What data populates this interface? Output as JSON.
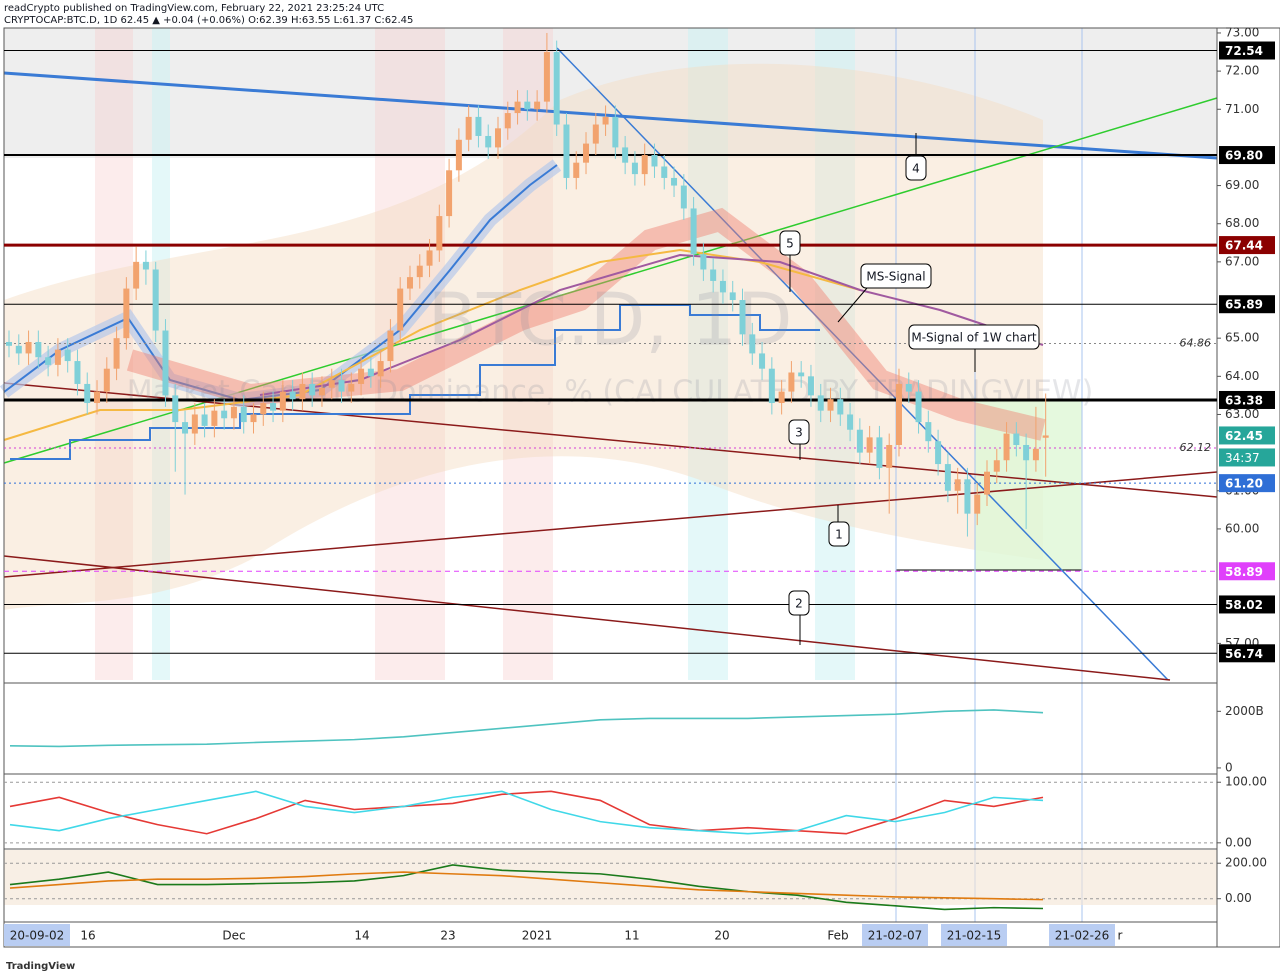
{
  "header": {
    "published": "readCrypto published on TradingView.com, February 22, 2021 23:25:24 UTC",
    "symbol_line": "CRYPTOCAP:BTC.D, 1D  62.45 ▲ +0.04 (+0.06%)  O:62.39 H:63.55 L:61.37 C:62.45"
  },
  "chart_data": {
    "type": "candlestick",
    "watermark": "BTC.D, 1D",
    "watermark_subtitle": "Market Cap BTC Dominance, % (CALCULATED BY TRADINGVIEW)",
    "open": [
      64.9,
      64.8,
      64.6,
      64.9,
      64.5,
      64.3,
      64.7,
      64.4,
      63.8,
      63.3,
      63.6,
      64.2,
      65.0,
      66.3,
      67.0,
      66.8,
      65.2,
      63.5,
      62.8,
      62.5,
      63.0,
      62.7,
      63.1,
      62.9,
      63.2,
      62.8,
      63.0,
      63.3,
      63.1,
      63.6,
      63.4,
      63.8,
      63.5,
      63.7,
      63.9,
      63.6,
      63.8,
      64.2,
      64.0,
      64.4,
      65.2,
      66.3,
      66.6,
      66.9,
      67.3,
      68.2,
      69.4,
      70.2,
      70.8,
      70.3,
      70.0,
      70.5,
      70.9,
      71.2,
      71.0,
      71.2,
      72.5,
      70.6,
      69.2,
      69.6,
      70.1,
      70.6,
      70.8,
      70.0,
      69.6,
      69.3,
      69.8,
      69.5,
      69.2,
      69.0,
      68.4,
      67.2,
      66.8,
      66.5,
      66.2,
      66.0,
      65.1,
      64.6,
      64.2,
      63.3,
      63.6,
      64.1,
      64.0,
      63.5,
      63.1,
      63.4,
      63.0,
      62.6,
      62.0,
      62.4,
      61.6,
      62.2,
      63.8,
      63.6,
      62.8,
      62.3,
      61.7,
      61.0,
      61.3,
      60.4,
      60.9,
      61.5,
      61.8,
      62.5,
      62.2,
      61.8,
      62.39
    ],
    "high": [
      65.2,
      65.1,
      65.2,
      65.2,
      64.8,
      65.0,
      65.0,
      64.7,
      64.1,
      63.9,
      64.5,
      65.3,
      66.6,
      67.4,
      67.3,
      67.0,
      65.5,
      63.8,
      63.1,
      63.3,
      63.3,
      63.4,
      63.4,
      63.5,
      63.5,
      63.3,
      63.6,
      63.6,
      63.9,
      63.9,
      64.1,
      64.1,
      64.0,
      64.2,
      64.2,
      64.1,
      64.5,
      64.5,
      64.7,
      65.5,
      66.6,
      66.9,
      67.2,
      67.6,
      68.5,
      69.7,
      70.5,
      71.1,
      71.1,
      70.6,
      70.8,
      71.2,
      71.5,
      71.5,
      71.5,
      73.0,
      72.8,
      70.9,
      69.9,
      70.4,
      70.9,
      71.1,
      71.1,
      70.3,
      69.9,
      70.1,
      70.1,
      69.8,
      69.5,
      69.3,
      68.7,
      67.5,
      67.1,
      66.8,
      66.5,
      66.3,
      65.4,
      64.9,
      64.5,
      63.9,
      64.4,
      64.4,
      64.3,
      63.8,
      63.7,
      63.7,
      63.3,
      62.9,
      62.7,
      62.7,
      62.5,
      64.2,
      64.1,
      63.9,
      63.1,
      62.6,
      62.0,
      61.6,
      61.6,
      61.2,
      61.8,
      62.1,
      62.8,
      62.8,
      62.5,
      63.2,
      63.55
    ],
    "low": [
      64.5,
      64.3,
      64.3,
      64.2,
      64.0,
      64.0,
      64.1,
      63.5,
      63.0,
      63.0,
      63.3,
      63.9,
      64.7,
      66.0,
      66.4,
      64.9,
      63.2,
      61.5,
      60.9,
      62.2,
      62.4,
      62.4,
      62.6,
      62.6,
      62.5,
      62.5,
      62.7,
      62.8,
      62.8,
      63.1,
      63.1,
      63.2,
      63.2,
      63.4,
      63.3,
      63.3,
      63.5,
      63.7,
      63.7,
      64.1,
      64.9,
      66.0,
      66.3,
      66.6,
      67.0,
      67.9,
      69.1,
      69.9,
      70.0,
      69.7,
      69.7,
      70.2,
      70.6,
      70.7,
      70.7,
      70.9,
      70.3,
      68.9,
      68.9,
      69.3,
      69.8,
      70.3,
      69.7,
      69.3,
      69.0,
      69.0,
      69.2,
      68.9,
      68.7,
      68.1,
      66.9,
      66.5,
      66.2,
      65.9,
      65.7,
      64.8,
      64.3,
      63.9,
      63.0,
      63.0,
      63.3,
      63.7,
      63.2,
      62.8,
      62.8,
      62.7,
      62.3,
      61.7,
      61.7,
      61.3,
      60.4,
      61.9,
      63.3,
      62.5,
      62.0,
      61.4,
      60.7,
      60.4,
      59.8,
      60.1,
      60.6,
      61.2,
      61.5,
      61.9,
      60.0,
      61.5,
      61.37
    ],
    "close": [
      64.8,
      64.6,
      64.9,
      64.5,
      64.3,
      64.7,
      64.4,
      63.8,
      63.3,
      63.6,
      64.2,
      65.0,
      66.3,
      67.0,
      66.8,
      65.2,
      63.5,
      62.8,
      62.5,
      63.0,
      62.7,
      63.1,
      62.9,
      63.2,
      62.8,
      63.0,
      63.3,
      63.1,
      63.6,
      63.4,
      63.8,
      63.5,
      63.7,
      63.9,
      63.6,
      63.8,
      64.2,
      64.0,
      64.4,
      65.2,
      66.3,
      66.6,
      66.9,
      67.3,
      68.2,
      69.4,
      70.2,
      70.8,
      70.3,
      70.0,
      70.5,
      70.9,
      71.2,
      71.0,
      71.2,
      72.5,
      70.6,
      69.2,
      69.6,
      70.1,
      70.6,
      70.8,
      70.0,
      69.6,
      69.3,
      69.8,
      69.5,
      69.2,
      69.0,
      68.4,
      67.2,
      66.8,
      66.5,
      66.2,
      66.0,
      65.1,
      64.6,
      64.2,
      63.3,
      63.6,
      64.1,
      64.0,
      63.5,
      63.1,
      63.4,
      63.0,
      62.6,
      62.0,
      62.4,
      61.6,
      62.2,
      63.8,
      63.6,
      62.8,
      62.3,
      61.7,
      61.0,
      61.3,
      60.4,
      60.9,
      61.5,
      61.8,
      62.5,
      62.2,
      61.8,
      62.1,
      62.45
    ],
    "up_color": "#f2a36e",
    "down_color": "#7fd0d8",
    "ylim": [
      56.04,
      73.13
    ],
    "yticks": [
      {
        "value": 73,
        "label": "73.00"
      },
      {
        "value": 72,
        "label": "72.00"
      },
      {
        "value": 71,
        "label": "71.00"
      },
      {
        "value": 69,
        "label": "69.00"
      },
      {
        "value": 68,
        "label": "68.00"
      },
      {
        "value": 67,
        "label": "67.00"
      },
      {
        "value": 65,
        "label": "65.00"
      },
      {
        "value": 64,
        "label": "64.00"
      },
      {
        "value": 63,
        "label": "63.00"
      },
      {
        "value": 61,
        "label": "61.00"
      },
      {
        "value": 60,
        "label": "60.00"
      },
      {
        "value": 57,
        "label": "57.00"
      }
    ],
    "levels": [
      {
        "value": 72.54,
        "label": "72.54",
        "color": "#000000",
        "style": "solid",
        "width": 1,
        "box": true
      },
      {
        "value": 69.8,
        "label": "69.80",
        "color": "#000000",
        "style": "solid",
        "width": 2,
        "box": true
      },
      {
        "value": 67.44,
        "label": "67.44",
        "color": "#8b0000",
        "style": "solid",
        "width": 3,
        "box": true
      },
      {
        "value": 65.89,
        "label": "65.89",
        "color": "#000000",
        "style": "solid",
        "width": 1,
        "box": true
      },
      {
        "value": 64.86,
        "label": "64.86",
        "color": "#888888",
        "style": "dotted",
        "width": 1,
        "box": false
      },
      {
        "value": 63.38,
        "label": "63.38",
        "color": "#000000",
        "style": "solid",
        "width": 3,
        "box": true
      },
      {
        "value": 62.45,
        "label": "62.45",
        "color": "#26a69a",
        "style": "none",
        "width": 1,
        "box": true
      },
      {
        "value": 62.12,
        "label": "62.12",
        "color": "#d63fd6",
        "style": "dotted",
        "width": 1,
        "box": false
      },
      {
        "value": 61.2,
        "label": "61.20",
        "color": "#2f6fd6",
        "style": "dotted",
        "width": 1,
        "box": true
      },
      {
        "value": 58.89,
        "label": "58.89",
        "color": "#e040fb",
        "style": "dashed",
        "width": 1,
        "box": true
      },
      {
        "value": 58.02,
        "label": "58.02",
        "color": "#000000",
        "style": "solid",
        "width": 1,
        "box": true
      },
      {
        "value": 56.74,
        "label": "56.74",
        "color": "#000000",
        "style": "solid",
        "width": 1,
        "box": true
      }
    ],
    "countdown": "34:37",
    "annotations": [
      "1",
      "2",
      "3",
      "4",
      "5",
      "MS-Signal",
      "M-Signal of 1W chart"
    ],
    "x_labels": [
      "20-09-02",
      "16",
      "Dec",
      "14",
      "23",
      "2021",
      "11",
      "20",
      "Feb",
      "21-02-07",
      "21-02-15",
      "21-02-26",
      "r"
    ]
  },
  "panels": [
    {
      "type": "line",
      "ylim": [
        -214,
        3000
      ],
      "yticks": [
        {
          "value": 2000,
          "label": "2000B"
        },
        0
      ],
      "series": [
        {
          "color": "#4fc3c0",
          "values": [
            780,
            760,
            800,
            820,
            840,
            900,
            950,
            1000,
            1100,
            1250,
            1400,
            1550,
            1700,
            1750,
            1750,
            1750,
            1800,
            1850,
            1900,
            2000,
            2050,
            1950
          ]
        }
      ]
    },
    {
      "type": "line",
      "ylim": [
        -10.2,
        113.6
      ],
      "yticks": [
        {
          "value": 100,
          "label": "100.00"
        },
        {
          "value": 0,
          "label": "0.00"
        }
      ],
      "series": [
        {
          "color": "#e53935",
          "values": [
            60,
            75,
            50,
            30,
            15,
            40,
            70,
            55,
            60,
            65,
            80,
            85,
            70,
            30,
            20,
            25,
            20,
            15,
            40,
            70,
            60,
            75
          ]
        },
        {
          "color": "#40d8e8",
          "values": [
            30,
            20,
            40,
            55,
            70,
            85,
            60,
            50,
            60,
            75,
            85,
            55,
            35,
            25,
            20,
            15,
            20,
            45,
            35,
            50,
            75,
            70
          ]
        }
      ]
    },
    {
      "type": "line",
      "ylim": [
        -131,
        280
      ],
      "yticks": [
        {
          "value": 200,
          "label": "200.00"
        },
        {
          "value": 0,
          "label": "0.00"
        }
      ],
      "series": [
        {
          "color": "#1b7a1b",
          "values": [
            80,
            110,
            150,
            80,
            80,
            85,
            90,
            100,
            130,
            190,
            160,
            150,
            140,
            110,
            70,
            40,
            20,
            -20,
            -40,
            -60,
            -50,
            -55
          ]
        },
        {
          "color": "#e07b10",
          "values": [
            60,
            80,
            100,
            110,
            110,
            115,
            125,
            140,
            150,
            140,
            130,
            110,
            90,
            70,
            50,
            40,
            30,
            20,
            10,
            5,
            0,
            -5
          ]
        }
      ]
    }
  ],
  "footer": "TradingView"
}
